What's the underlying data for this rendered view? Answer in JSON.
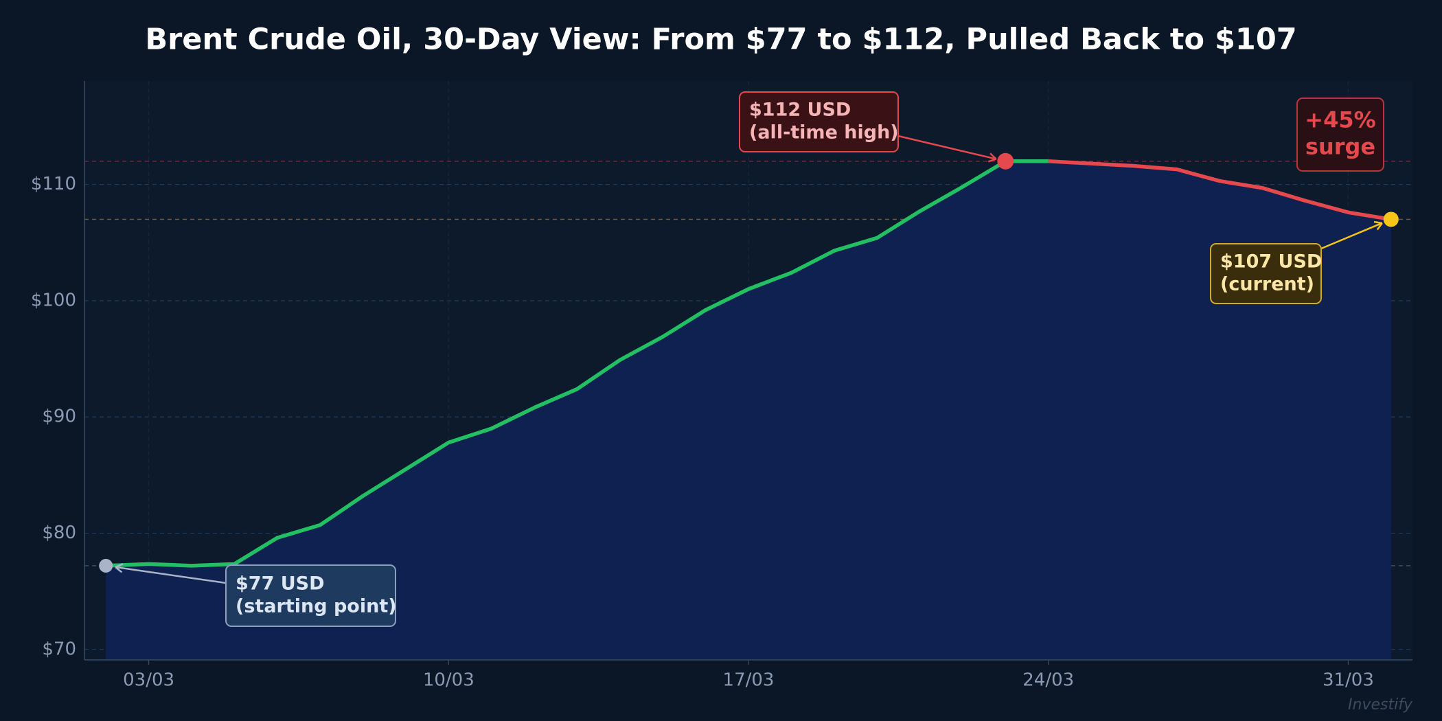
{
  "chart_data": {
    "type": "line",
    "title": "Brent Crude Oil, 30-Day View: From $77 to $112, Pulled Back to $107",
    "categories": [
      null,
      "03/03",
      null,
      null,
      null,
      null,
      null,
      null,
      "10/03",
      null,
      null,
      null,
      null,
      null,
      null,
      "17/03",
      null,
      null,
      null,
      null,
      null,
      null,
      "24/03",
      null,
      null,
      null,
      null,
      null,
      null,
      "31/03",
      null
    ],
    "series": [
      {
        "color": "#22c063",
        "values": [
          77.2,
          77.35,
          77.2,
          77.35,
          79.6,
          80.7,
          83.2,
          85.5,
          87.8,
          89.0,
          90.8,
          92.4,
          94.9,
          96.9,
          99.2,
          101.0,
          102.4,
          104.3,
          105.4,
          107.7,
          109.8,
          112.0,
          112.0,
          null,
          null,
          null,
          null,
          null,
          null,
          null,
          null
        ]
      },
      {
        "color": "#e5484d",
        "values": [
          null,
          null,
          null,
          null,
          null,
          null,
          null,
          null,
          null,
          null,
          null,
          null,
          null,
          null,
          null,
          null,
          null,
          null,
          null,
          null,
          null,
          null,
          112.0,
          111.8,
          111.6,
          111.3,
          110.3,
          109.7,
          108.6,
          107.6,
          107.0
        ]
      }
    ],
    "area_color": "#0f2150",
    "ylim": [
      69.1,
      118.9
    ],
    "yticks": [
      {
        "value": 70,
        "label": "$70"
      },
      {
        "value": 80,
        "label": "$80"
      },
      {
        "value": 90,
        "label": "$90"
      },
      {
        "value": 100,
        "label": "$100"
      },
      {
        "value": 110,
        "label": "$110"
      }
    ],
    "grid": true,
    "annotations": [
      {
        "lines": [
          "$112 USD",
          "(all-time high)"
        ],
        "color": "#e5484d"
      },
      {
        "lines": [
          "$107 USD",
          "(current)"
        ],
        "color": "#f5c518"
      },
      {
        "lines": [
          "$77 USD",
          "(starting point)"
        ],
        "color": "#a9b4c8"
      },
      {
        "lines": [
          "+45%",
          "surge"
        ],
        "color": "#e5484d"
      }
    ],
    "watermark": "Investify"
  }
}
